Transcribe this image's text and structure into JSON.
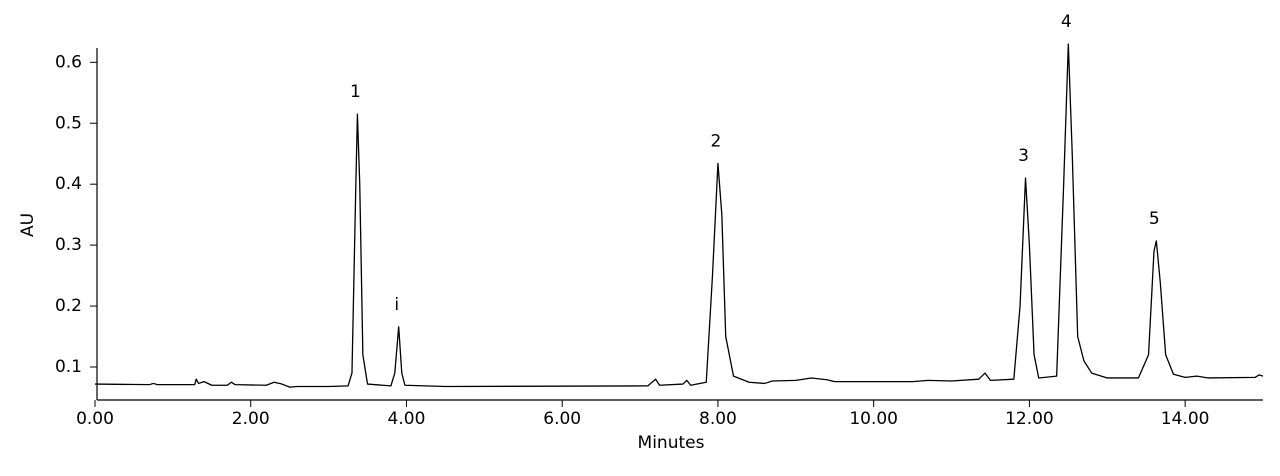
{
  "chart_data": {
    "type": "line",
    "x_label": "Minutes",
    "y_label": "AU",
    "xlim": [
      0,
      15
    ],
    "ylim": [
      0.045,
      0.635
    ],
    "xticks": [
      {
        "value": 0,
        "label": "0.00"
      },
      {
        "value": 2,
        "label": "2.00"
      },
      {
        "value": 4,
        "label": "4.00"
      },
      {
        "value": 6,
        "label": "6.00"
      },
      {
        "value": 8,
        "label": "8.00"
      },
      {
        "value": 10,
        "label": "10.00"
      },
      {
        "value": 12,
        "label": "12.00"
      },
      {
        "value": 14,
        "label": "14.00"
      }
    ],
    "yticks": [
      0.1,
      0.2,
      0.3,
      0.4,
      0.5,
      0.6
    ],
    "series": [
      {
        "color": "#000000",
        "x": [
          0,
          0.7,
          0.75,
          0.8,
          1.28,
          1.3,
          1.33,
          1.4,
          1.5,
          1.7,
          1.75,
          1.8,
          2.2,
          2.3,
          2.4,
          2.5,
          2.6,
          3.0,
          3.25,
          3.3,
          3.35,
          3.37,
          3.4,
          3.44,
          3.5,
          3.8,
          3.85,
          3.9,
          3.94,
          3.98,
          4.5,
          7.1,
          7.2,
          7.25,
          7.55,
          7.6,
          7.65,
          7.85,
          7.93,
          8.0,
          8.05,
          8.1,
          8.2,
          8.4,
          8.6,
          8.7,
          9.0,
          9.2,
          9.4,
          9.5,
          10.5,
          10.7,
          11.0,
          11.35,
          11.43,
          11.5,
          11.8,
          11.88,
          11.95,
          12.0,
          12.06,
          12.12,
          12.35,
          12.44,
          12.5,
          12.55,
          12.62,
          12.7,
          12.8,
          13.0,
          13.4,
          13.53,
          13.6,
          13.63,
          13.68,
          13.75,
          13.85,
          14.0,
          14.15,
          14.3,
          14.9,
          14.95,
          15.0
        ],
        "values": [
          0.072,
          0.071,
          0.073,
          0.071,
          0.071,
          0.08,
          0.073,
          0.076,
          0.07,
          0.07,
          0.075,
          0.071,
          0.07,
          0.075,
          0.072,
          0.067,
          0.068,
          0.068,
          0.069,
          0.09,
          0.4,
          0.515,
          0.4,
          0.12,
          0.072,
          0.069,
          0.09,
          0.166,
          0.09,
          0.07,
          0.068,
          0.069,
          0.08,
          0.07,
          0.072,
          0.078,
          0.07,
          0.075,
          0.25,
          0.434,
          0.35,
          0.15,
          0.085,
          0.075,
          0.073,
          0.077,
          0.078,
          0.082,
          0.079,
          0.076,
          0.076,
          0.078,
          0.077,
          0.08,
          0.09,
          0.078,
          0.08,
          0.2,
          0.41,
          0.3,
          0.12,
          0.082,
          0.085,
          0.4,
          0.63,
          0.45,
          0.15,
          0.11,
          0.09,
          0.082,
          0.082,
          0.12,
          0.29,
          0.307,
          0.24,
          0.12,
          0.088,
          0.083,
          0.085,
          0.082,
          0.083,
          0.087,
          0.085
        ]
      }
    ],
    "annotations": [
      {
        "text": "1",
        "x": 3.37,
        "y": 0.515
      },
      {
        "text": "i",
        "x": 3.9,
        "y": 0.166
      },
      {
        "text": "2",
        "x": 8.0,
        "y": 0.434
      },
      {
        "text": "3",
        "x": 11.95,
        "y": 0.41
      },
      {
        "text": "4",
        "x": 12.5,
        "y": 0.63
      },
      {
        "text": "5",
        "x": 13.63,
        "y": 0.307
      }
    ]
  }
}
